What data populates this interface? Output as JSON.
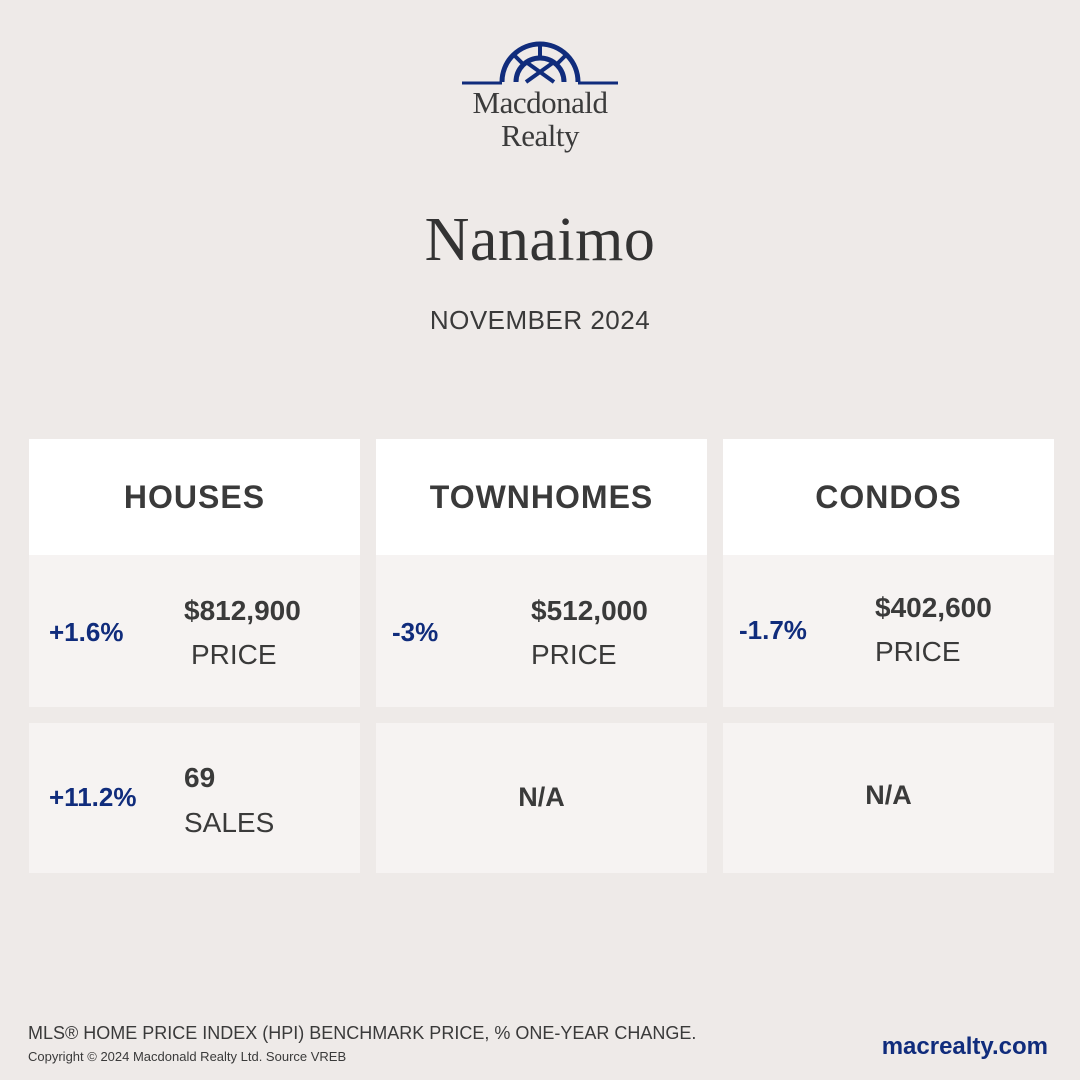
{
  "brand": {
    "line1": "Macdonald",
    "line2": "Realty",
    "logo_icon": "arched-window-logo-icon",
    "logo_color": "#102c7c"
  },
  "city": "Nanaimo",
  "period": "NOVEMBER 2024",
  "accent_color": "#102c7c",
  "categories": [
    {
      "title": "HOUSES",
      "price": {
        "change": "+1.6%",
        "value": "$812,900",
        "label": "PRICE"
      },
      "sales": {
        "change": "+11.2%",
        "value": "69",
        "label": "SALES",
        "na": ""
      }
    },
    {
      "title": "TOWNHOMES",
      "price": {
        "change": "-3%",
        "value": "$512,000",
        "label": "PRICE"
      },
      "sales": {
        "change": "",
        "value": "",
        "label": "",
        "na": "N/A"
      }
    },
    {
      "title": "CONDOS",
      "price": {
        "change": "-1.7%",
        "value": "$402,600",
        "label": "PRICE"
      },
      "sales": {
        "change": "",
        "value": "",
        "label": "",
        "na": "N/A"
      }
    }
  ],
  "footer": {
    "note": "MLS® HOME PRICE INDEX (HPI) BENCHMARK PRICE, % ONE-YEAR CHANGE.",
    "copyright": "Copyright © 2024 Macdonald Realty Ltd. Source VREB",
    "website": "macrealty.com"
  }
}
